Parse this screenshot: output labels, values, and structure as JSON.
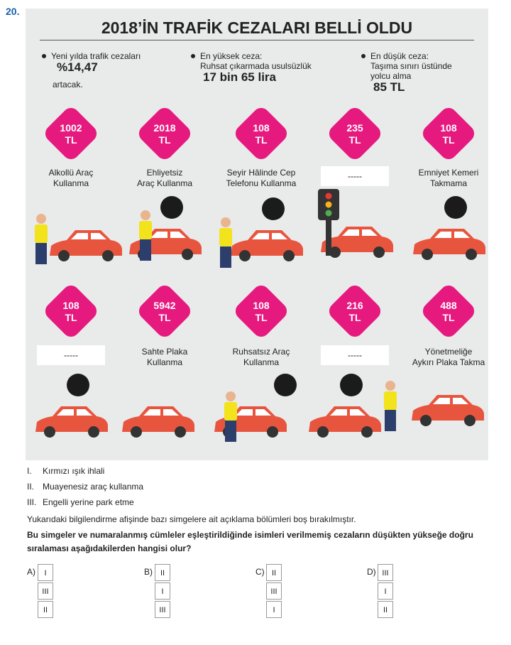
{
  "question_number": "20.",
  "poster": {
    "title": "2018’İN TRAFİK CEZALARI BELLİ OLDU",
    "facts": [
      {
        "lines": [
          "Yeni yılda trafik cezaları"
        ],
        "highlight": "%14,47",
        "after": "artacak."
      },
      {
        "lines": [
          "En yüksek ceza:",
          "Ruhsat çıkarmada usulsüzlük"
        ],
        "highlight": "17 bin 65 lira"
      },
      {
        "lines": [
          "En düşük ceza:",
          "Taşıma sınırı üstünde",
          "yolcu alma"
        ],
        "highlight": "85 TL"
      }
    ],
    "fines": [
      {
        "amount": "1002",
        "unit": "TL",
        "label": [
          "Alkollü Araç",
          "Kullanma"
        ]
      },
      {
        "amount": "2018",
        "unit": "TL",
        "label": [
          "Ehliyetsiz",
          "Araç Kullanma"
        ]
      },
      {
        "amount": "108",
        "unit": "TL",
        "label": [
          "Seyir Hâlinde Cep",
          "Telefonu Kullanma"
        ]
      },
      {
        "amount": "235",
        "unit": "TL",
        "blank": "-----"
      },
      {
        "amount": "108",
        "unit": "TL",
        "label": [
          "Emniyet Kemeri",
          "Takmama"
        ]
      },
      {
        "amount": "108",
        "unit": "TL",
        "blank": "-----"
      },
      {
        "amount": "5942",
        "unit": "TL",
        "label": [
          "Sahte Plaka",
          "Kullanma"
        ]
      },
      {
        "amount": "108",
        "unit": "TL",
        "label": [
          "Ruhsatsız Araç",
          "Kullanma"
        ]
      },
      {
        "amount": "216",
        "unit": "TL",
        "blank": "-----"
      },
      {
        "amount": "488",
        "unit": "TL",
        "label": [
          "Yönetmeliğe",
          "Aykırı Plaka Takma"
        ]
      }
    ]
  },
  "items": [
    {
      "numeral": "I.",
      "text": "Kırmızı ışık ihlali"
    },
    {
      "numeral": "II.",
      "text": "Muayenesiz araç kullanma"
    },
    {
      "numeral": "III.",
      "text": "Engelli yerine park etme"
    }
  ],
  "intro": "Yukarıdaki bilgilendirme afişinde bazı simgelere ait açıklama bölümleri boş bırakılmıştır.",
  "question": [
    "Bu simgeler ve numaralanmış cümleler eşleştirildiğinde isimleri verilmemiş cezaların düşükten yükseğe doğru",
    "sıralaması aşağıdakilerden hangisi olur?"
  ],
  "options": [
    {
      "letter": "A)",
      "order": [
        "I",
        "III",
        "II"
      ]
    },
    {
      "letter": "B)",
      "order": [
        "II",
        "I",
        "III"
      ]
    },
    {
      "letter": "C)",
      "order": [
        "II",
        "III",
        "I"
      ]
    },
    {
      "letter": "D)",
      "order": [
        "III",
        "I",
        "II"
      ]
    }
  ]
}
